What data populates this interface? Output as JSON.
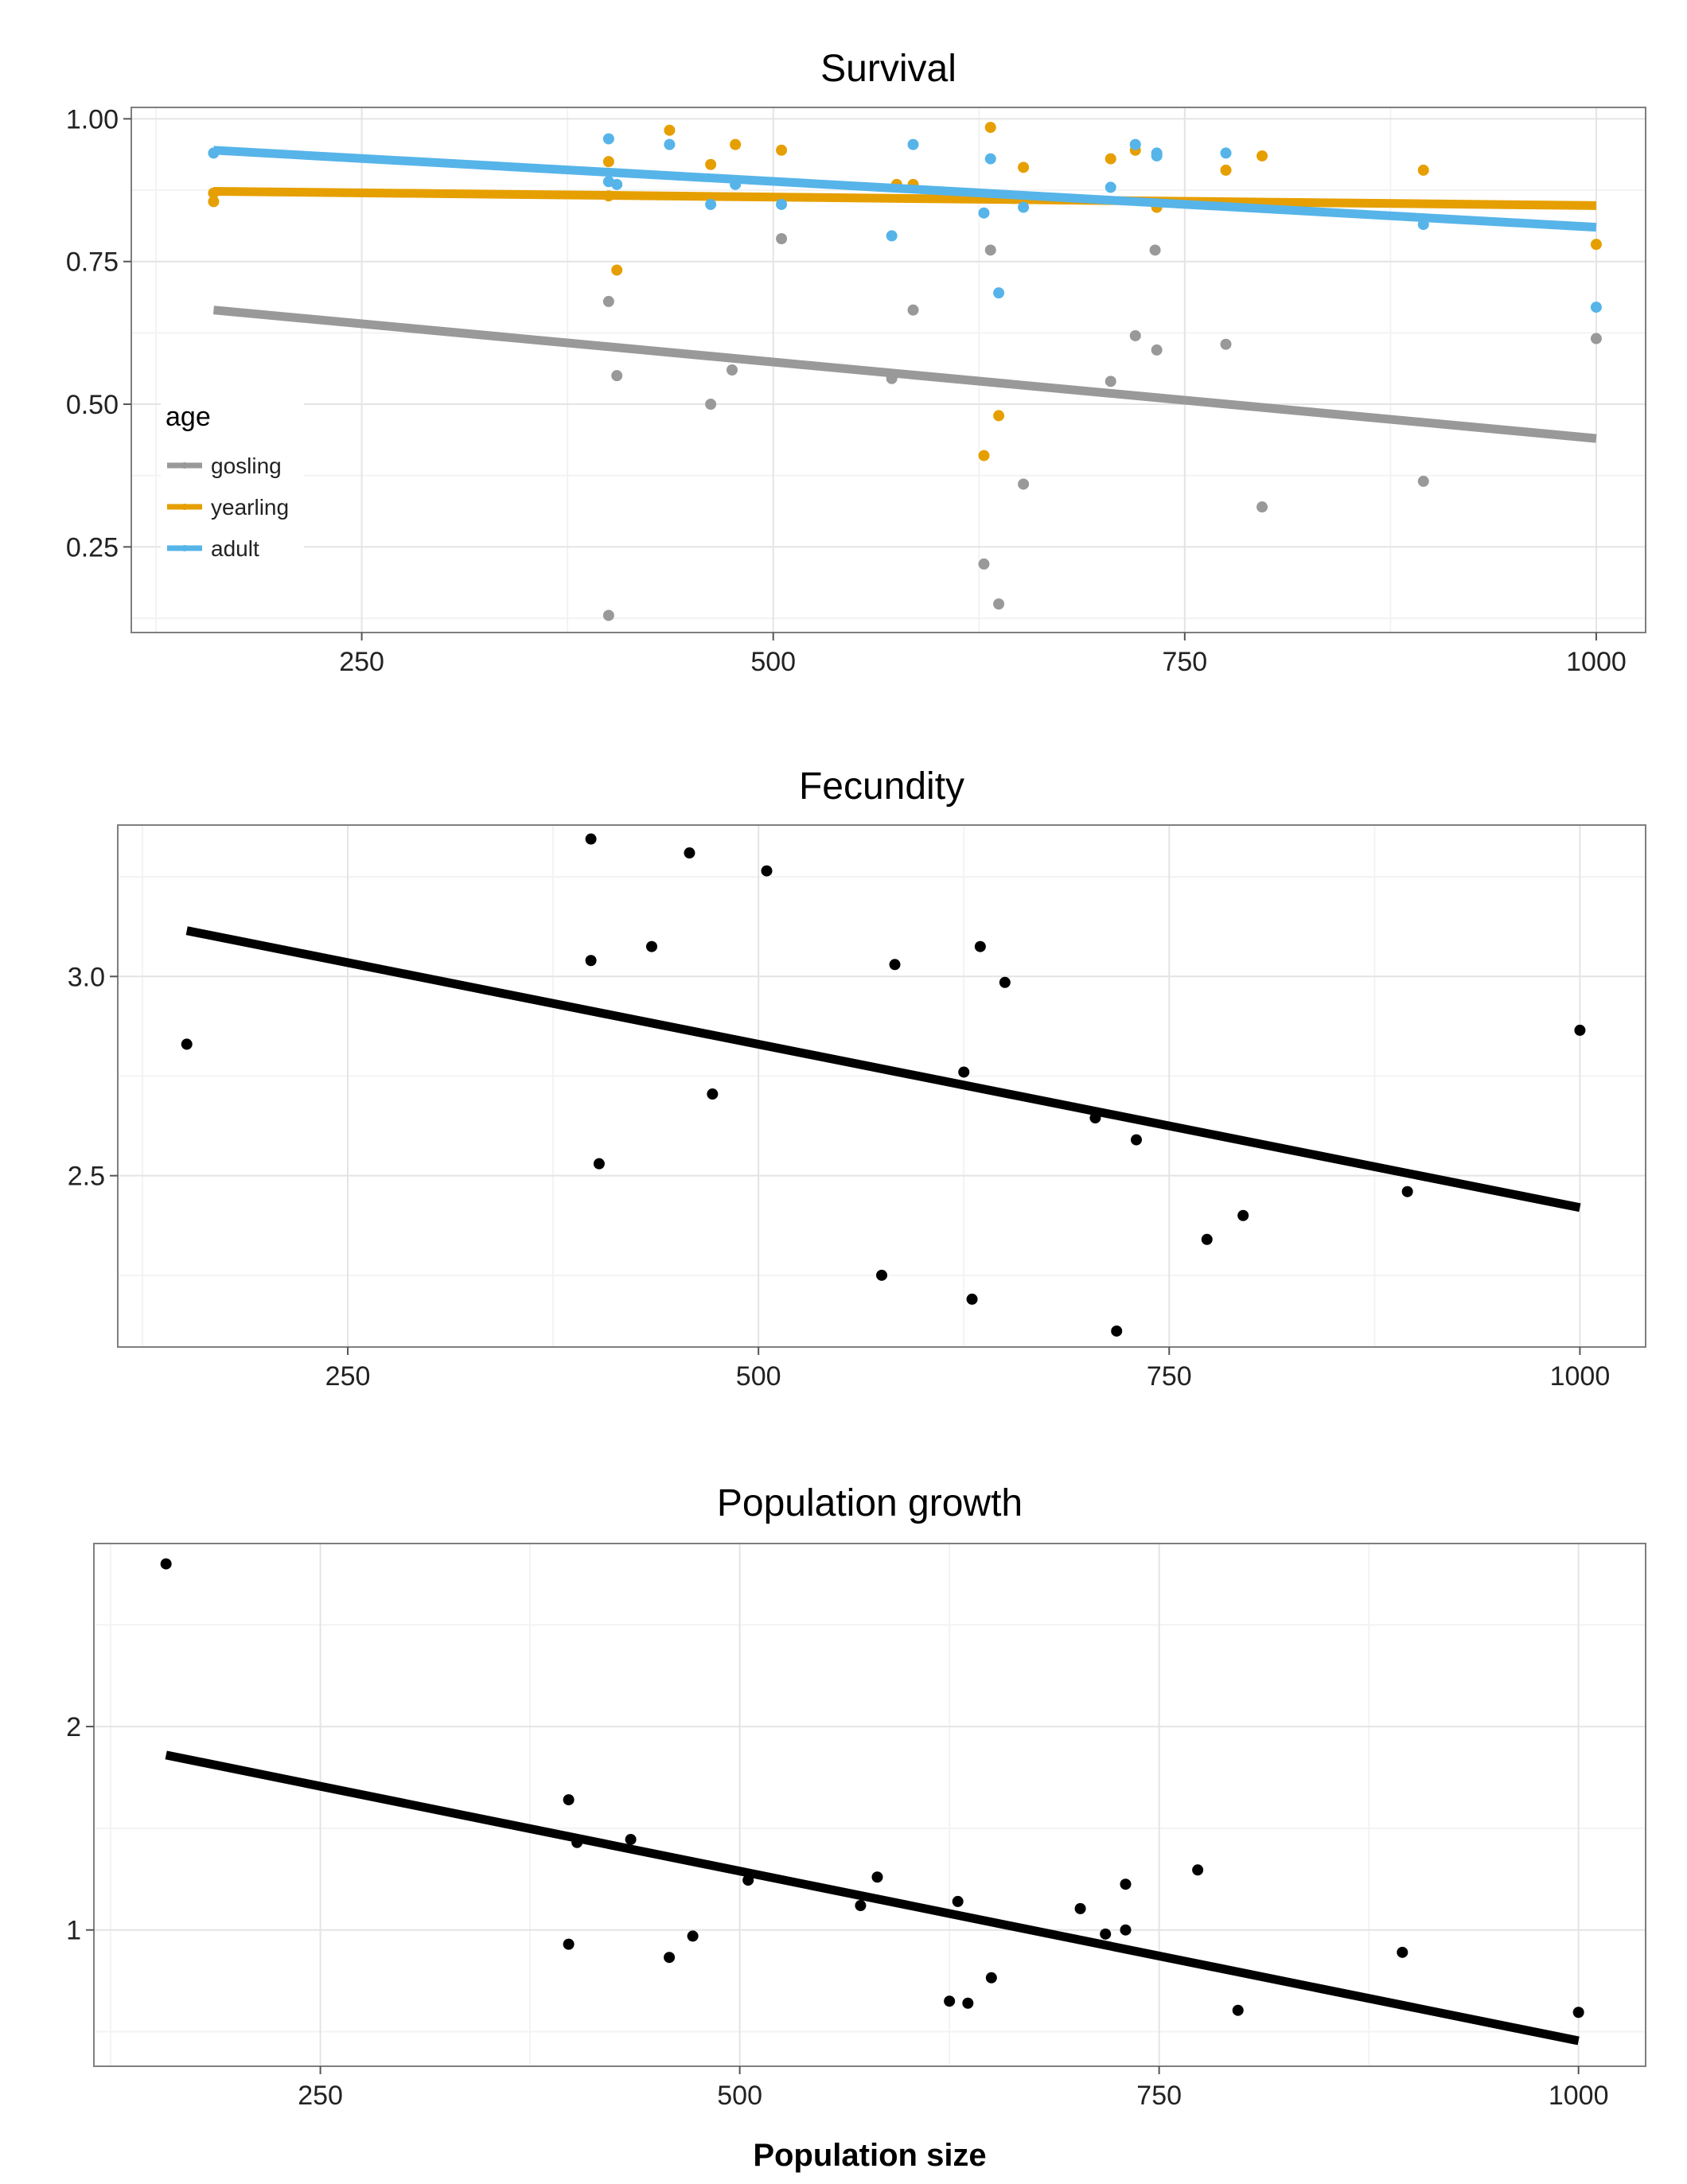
{
  "chart_data": [
    {
      "type": "scatter",
      "title": "Survival",
      "xlabel": "",
      "ylabel": "",
      "xlim": [
        110,
        1030
      ],
      "ylim": [
        0.1,
        1.02
      ],
      "xticks": [
        250,
        500,
        750,
        1000
      ],
      "yticks": [
        0.25,
        0.5,
        0.75,
        1.0
      ],
      "xtick_labels": [
        "250",
        "500",
        "750",
        "1000"
      ],
      "ytick_labels": [
        "0.25",
        "0.50",
        "0.75",
        "1.00"
      ],
      "grid": true,
      "legend": {
        "title": "age",
        "position": "bottom-left-inside",
        "entries": [
          {
            "label": "gosling",
            "color": "#999999"
          },
          {
            "label": "yearling",
            "color": "#e69f00"
          },
          {
            "label": "adult",
            "color": "#56b4e9"
          }
        ]
      },
      "series": [
        {
          "name": "gosling",
          "color": "#999999",
          "points": [
            [
              400,
              0.68
            ],
            [
              405,
              0.55
            ],
            [
              400,
              0.13
            ],
            [
              462,
              0.5
            ],
            [
              475,
              0.56
            ],
            [
              505,
              0.79
            ],
            [
              585,
              0.665
            ],
            [
              572,
              0.545
            ],
            [
              628,
              0.22
            ],
            [
              632,
              0.77
            ],
            [
              637,
              0.15
            ],
            [
              652,
              0.36
            ],
            [
              705,
              0.54
            ],
            [
              720,
              0.62
            ],
            [
              732,
              0.77
            ],
            [
              733,
              0.595
            ],
            [
              775,
              0.605
            ],
            [
              797,
              0.32
            ],
            [
              895,
              0.365
            ],
            [
              1000,
              0.615
            ]
          ],
          "trend": [
            [
              160,
              0.665
            ],
            [
              1000,
              0.44
            ]
          ]
        },
        {
          "name": "yearling",
          "color": "#e69f00",
          "points": [
            [
              160,
              0.855
            ],
            [
              160,
              0.87
            ],
            [
              400,
              0.925
            ],
            [
              400,
              0.865
            ],
            [
              405,
              0.735
            ],
            [
              437,
              0.98
            ],
            [
              462,
              0.92
            ],
            [
              477,
              0.955
            ],
            [
              505,
              0.945
            ],
            [
              575,
              0.885
            ],
            [
              585,
              0.885
            ],
            [
              628,
              0.41
            ],
            [
              632,
              0.985
            ],
            [
              637,
              0.48
            ],
            [
              652,
              0.915
            ],
            [
              705,
              0.93
            ],
            [
              720,
              0.945
            ],
            [
              733,
              0.845
            ],
            [
              775,
              0.91
            ],
            [
              797,
              0.935
            ],
            [
              895,
              0.91
            ],
            [
              1000,
              0.78
            ]
          ],
          "trend": [
            [
              160,
              0.873
            ],
            [
              1000,
              0.848
            ]
          ]
        },
        {
          "name": "adult",
          "color": "#56b4e9",
          "points": [
            [
              160,
              0.94
            ],
            [
              400,
              0.965
            ],
            [
              400,
              0.89
            ],
            [
              405,
              0.885
            ],
            [
              437,
              0.955
            ],
            [
              462,
              0.85
            ],
            [
              477,
              0.885
            ],
            [
              505,
              0.85
            ],
            [
              572,
              0.795
            ],
            [
              585,
              0.955
            ],
            [
              628,
              0.835
            ],
            [
              632,
              0.93
            ],
            [
              637,
              0.695
            ],
            [
              652,
              0.845
            ],
            [
              705,
              0.88
            ],
            [
              720,
              0.955
            ],
            [
              733,
              0.94
            ],
            [
              733,
              0.935
            ],
            [
              775,
              0.94
            ],
            [
              895,
              0.815
            ],
            [
              1000,
              0.67
            ]
          ],
          "trend": [
            [
              160,
              0.945
            ],
            [
              1000,
              0.81
            ]
          ]
        }
      ]
    },
    {
      "type": "scatter",
      "title": "Fecundity",
      "xlabel": "",
      "ylabel": "",
      "xlim": [
        110,
        1040
      ],
      "ylim": [
        2.07,
        3.38
      ],
      "xticks": [
        250,
        500,
        750,
        1000
      ],
      "yticks": [
        2.5,
        3.0
      ],
      "xtick_labels": [
        "250",
        "500",
        "750",
        "1000"
      ],
      "ytick_labels": [
        "2.5",
        "3.0"
      ],
      "grid": true,
      "series": [
        {
          "color": "#000000",
          "points": [
            [
              152,
              2.83
            ],
            [
              398,
              3.345
            ],
            [
              398,
              3.04
            ],
            [
              403,
              2.53
            ],
            [
              435,
              3.075
            ],
            [
              458,
              3.31
            ],
            [
              472,
              2.705
            ],
            [
              505,
              3.265
            ],
            [
              575,
              2.25
            ],
            [
              583,
              3.03
            ],
            [
              625,
              2.76
            ],
            [
              630,
              2.19
            ],
            [
              635,
              3.075
            ],
            [
              650,
              2.985
            ],
            [
              705,
              2.645
            ],
            [
              718,
              2.11
            ],
            [
              730,
              2.59
            ],
            [
              773,
              2.34
            ],
            [
              795,
              2.4
            ],
            [
              895,
              2.46
            ],
            [
              1000,
              2.865
            ]
          ],
          "trend": [
            [
              152,
              3.115
            ],
            [
              1000,
              2.42
            ]
          ]
        }
      ]
    },
    {
      "type": "scatter",
      "title": "Population growth",
      "xlabel": "Population size",
      "ylabel": "",
      "xlim": [
        115,
        1040
      ],
      "ylim": [
        0.33,
        2.9
      ],
      "xticks": [
        250,
        500,
        750,
        1000
      ],
      "yticks": [
        1,
        2
      ],
      "xtick_labels": [
        "250",
        "500",
        "750",
        "1000"
      ],
      "ytick_labels": [
        "1",
        "2"
      ],
      "grid": true,
      "series": [
        {
          "color": "#000000",
          "points": [
            [
              158,
              2.8
            ],
            [
              398,
              1.64
            ],
            [
              398,
              0.93
            ],
            [
              403,
              1.43
            ],
            [
              435,
              1.445
            ],
            [
              458,
              0.865
            ],
            [
              472,
              0.97
            ],
            [
              505,
              1.245
            ],
            [
              572,
              1.12
            ],
            [
              582,
              1.26
            ],
            [
              625,
              0.65
            ],
            [
              630,
              1.14
            ],
            [
              636,
              0.64
            ],
            [
              650,
              0.765
            ],
            [
              703,
              1.105
            ],
            [
              718,
              0.98
            ],
            [
              730,
              1.225
            ],
            [
              730,
              1.0
            ],
            [
              773,
              1.295
            ],
            [
              797,
              0.605
            ],
            [
              895,
              0.89
            ],
            [
              1000,
              0.595
            ]
          ],
          "trend": [
            [
              158,
              1.86
            ],
            [
              1000,
              0.455
            ]
          ]
        }
      ]
    }
  ]
}
